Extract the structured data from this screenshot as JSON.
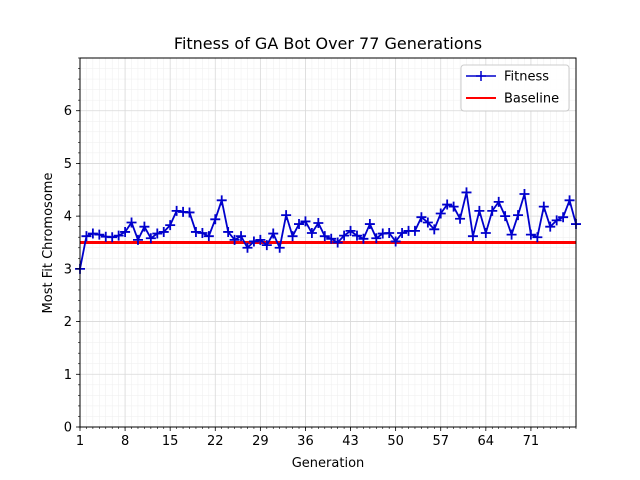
{
  "chart_data": {
    "type": "line",
    "title": "Fitness of GA Bot Over 77 Generations",
    "xlabel": "Generation",
    "ylabel": "Most Fit Chromosome",
    "xlim": [
      1,
      78
    ],
    "ylim": [
      0,
      7
    ],
    "xticks": [
      1,
      8,
      15,
      22,
      29,
      36,
      43,
      50,
      57,
      64,
      71
    ],
    "yticks": [
      0,
      1,
      2,
      3,
      4,
      5,
      6
    ],
    "grid": true,
    "minor_grid": true,
    "legend_position": "top-right",
    "series": [
      {
        "name": "Fitness",
        "color": "#0000cc",
        "marker": "plus",
        "x": [
          1,
          2,
          3,
          4,
          5,
          6,
          7,
          8,
          9,
          10,
          11,
          12,
          13,
          14,
          15,
          16,
          17,
          18,
          19,
          20,
          21,
          22,
          23,
          24,
          25,
          26,
          27,
          28,
          29,
          30,
          31,
          32,
          33,
          34,
          35,
          36,
          37,
          38,
          39,
          40,
          41,
          42,
          43,
          44,
          45,
          46,
          47,
          48,
          49,
          50,
          51,
          52,
          53,
          54,
          55,
          56,
          57,
          58,
          59,
          60,
          61,
          62,
          63,
          64,
          65,
          66,
          67,
          68,
          69,
          70,
          71,
          72,
          73,
          74,
          75,
          76,
          77,
          78
        ],
        "y": [
          3.0,
          3.62,
          3.67,
          3.65,
          3.61,
          3.6,
          3.63,
          3.7,
          3.88,
          3.55,
          3.8,
          3.58,
          3.67,
          3.7,
          3.83,
          4.1,
          4.08,
          4.07,
          3.7,
          3.68,
          3.62,
          3.94,
          4.3,
          3.7,
          3.55,
          3.62,
          3.4,
          3.52,
          3.55,
          3.45,
          3.67,
          3.4,
          4.02,
          3.62,
          3.85,
          3.9,
          3.68,
          3.87,
          3.62,
          3.57,
          3.5,
          3.63,
          3.72,
          3.63,
          3.57,
          3.85,
          3.58,
          3.67,
          3.68,
          3.52,
          3.68,
          3.72,
          3.72,
          3.98,
          3.88,
          3.75,
          4.05,
          4.22,
          4.18,
          3.95,
          4.45,
          3.62,
          4.1,
          3.68,
          4.1,
          4.27,
          4.0,
          3.65,
          4.02,
          4.42,
          3.65,
          3.6,
          4.18,
          3.8,
          3.92,
          3.98,
          4.3,
          3.85
        ]
      },
      {
        "name": "Baseline",
        "color": "#ff0000",
        "x": [
          1,
          78
        ],
        "y": [
          3.5,
          3.5
        ]
      }
    ]
  }
}
